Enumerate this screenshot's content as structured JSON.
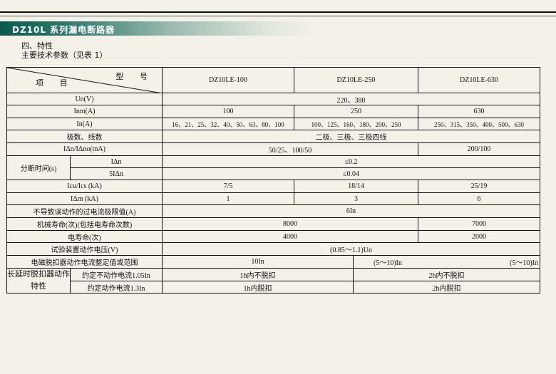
{
  "banner_title": "DZ10L 系列漏电断路器",
  "section_heading": "四、特性",
  "section_subheading": "主要技术参数（见表 1）",
  "table": {
    "header_model": "型 号",
    "header_item": "项 目",
    "models": [
      "DZ10LE-100",
      "DZ10LE-250",
      "DZ10LE-630"
    ],
    "rows": {
      "un": {
        "label": "Un(V)",
        "value": "220、380"
      },
      "inm": {
        "label": "Inm(A)",
        "values": [
          "100",
          "250",
          "630"
        ]
      },
      "in": {
        "label": "In(A)",
        "values": [
          "16、21、25、32、40、50、63、80、100",
          "100、125、160、180、200、250",
          "250、315、350、400、500、630"
        ]
      },
      "poles": {
        "label": "极数、线数",
        "value": "二极、三极、三极四线"
      },
      "idn": {
        "label": "IΔn/IΔno(mA)",
        "values": [
          "50/25、100/50",
          "200/100"
        ]
      },
      "break_time": {
        "label": "分断时间(s)",
        "sub": [
          {
            "label": "IΔn",
            "value": "≤0.2"
          },
          {
            "label": "5IΔn",
            "value": "≤0.04"
          }
        ]
      },
      "icu": {
        "label": "Icu/Ics  (kA)",
        "values": [
          "7/5",
          "18/14",
          "25/19"
        ]
      },
      "idm": {
        "label": "IΔm  (kA)",
        "values": [
          "1",
          "3",
          "6"
        ]
      },
      "limit": {
        "label": "不导致误动作的过电流极限值(A)",
        "value": "6In"
      },
      "mech_life": {
        "label": "机械寿命(次)(包括电寿命次数)",
        "values": [
          "8000",
          "7000"
        ]
      },
      "elec_life": {
        "label": "电寿命(次)",
        "values": [
          "4000",
          "2000"
        ]
      },
      "test_voltage": {
        "label": "试验装置动作电压(V)",
        "value": "(0.85～1.1)Un"
      },
      "em_release": {
        "label": "电磁脱扣器动作电流整定值或范围",
        "values": [
          "10In",
          "(5～10)In",
          "(5～10)In"
        ]
      },
      "long_delay": {
        "label": "长延时脱扣器动作特性",
        "sub": [
          {
            "label": "约定不动作电流1.05In",
            "values": [
              "1h内不脱扣",
              "2h内不脱扣"
            ]
          },
          {
            "label": "约定动作电流1.3In",
            "values": [
              "1h内脱扣",
              "2h内脱扣"
            ]
          }
        ]
      }
    }
  }
}
